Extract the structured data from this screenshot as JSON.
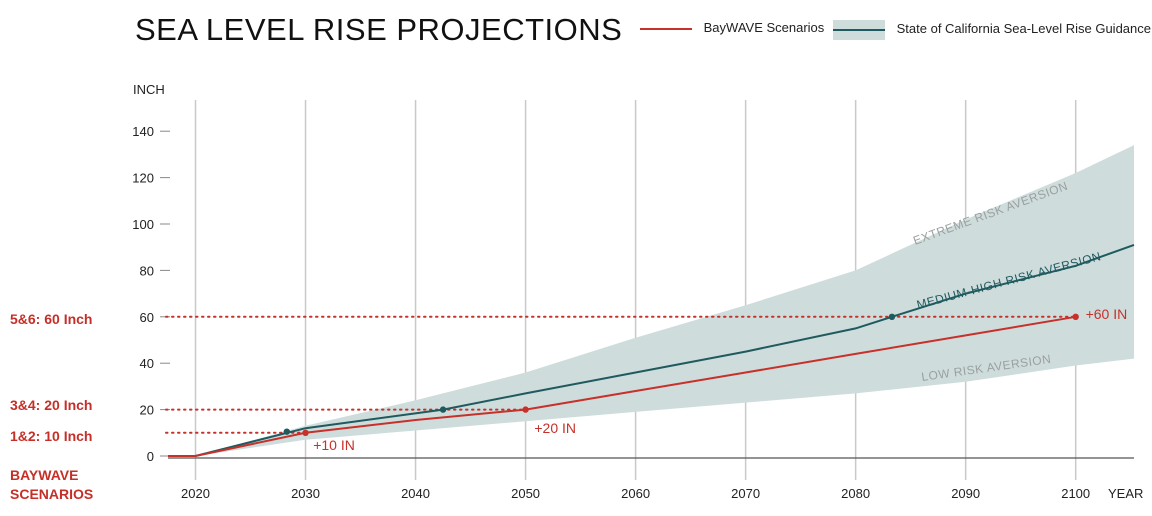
{
  "chart_data": {
    "type": "line",
    "title": "SEA LEVEL RISE PROJECTIONS",
    "ylabel": "INCH",
    "xlabel": "YEAR",
    "xlim": [
      2017.5,
      2105.3
    ],
    "ylim": [
      0,
      150
    ],
    "x_ticks": [
      2020,
      2030,
      2040,
      2050,
      2060,
      2070,
      2080,
      2090,
      2100
    ],
    "y_ticks": [
      0,
      20,
      40,
      60,
      80,
      100,
      120,
      140
    ],
    "legend": [
      {
        "name": "BayWAVE Scenarios",
        "color": "#c8302a"
      },
      {
        "name": "State of California Sea-Level Rise Guidance",
        "color": "#1f5a5f",
        "band_color": "#cfdcdc"
      }
    ],
    "band": {
      "name": "State of California Sea-Level Rise Guidance range",
      "x": [
        2017.5,
        2020,
        2030,
        2040,
        2050,
        2060,
        2070,
        2080,
        2090,
        2100,
        2105.3
      ],
      "upper": [
        0,
        0,
        13,
        24,
        36,
        51,
        65,
        80,
        102,
        122,
        134
      ],
      "lower": [
        0,
        0,
        7,
        11,
        15,
        19,
        23,
        27,
        32,
        39,
        42
      ]
    },
    "series": [
      {
        "name": "State of California Sea-Level Rise Guidance",
        "label": "MEDIUM-HIGH RISK AVERSION",
        "x": [
          2017.5,
          2020,
          2030,
          2042.5,
          2050,
          2060,
          2070,
          2080,
          2083.3,
          2090,
          2100,
          2105.3
        ],
        "values": [
          0,
          0,
          12,
          20,
          27,
          36,
          45,
          55,
          60,
          70,
          82,
          91
        ]
      },
      {
        "name": "BayWAVE Scenarios",
        "x": [
          2017.5,
          2020,
          2030,
          2040,
          2050,
          2060,
          2070,
          2080,
          2090,
          2100
        ],
        "values": [
          0,
          0,
          10,
          15.5,
          20,
          28,
          36,
          44,
          52,
          60
        ]
      }
    ],
    "markers": [
      {
        "series": "State of California Sea-Level Rise Guidance",
        "x": 2028.3,
        "y": 10.5
      },
      {
        "series": "State of California Sea-Level Rise Guidance",
        "x": 2042.5,
        "y": 20
      },
      {
        "series": "State of California Sea-Level Rise Guidance",
        "x": 2083.3,
        "y": 60
      },
      {
        "series": "BayWAVE Scenarios",
        "x": 2030,
        "y": 10
      },
      {
        "series": "BayWAVE Scenarios",
        "x": 2050,
        "y": 20
      },
      {
        "series": "BayWAVE Scenarios",
        "x": 2100,
        "y": 60
      }
    ],
    "reference_lines": [
      {
        "y": 10,
        "label": "1&2: 10 Inch",
        "x_end": 2030
      },
      {
        "y": 20,
        "label": "3&4: 20 Inch",
        "x_end": 2050
      },
      {
        "y": 60,
        "label": "5&6: 60 Inch",
        "x_end": 2100
      }
    ],
    "data_labels": [
      {
        "text": "+10 IN",
        "x": 2030.7,
        "y": 2.5
      },
      {
        "text": "+20 IN",
        "x": 2050.8,
        "y": 10
      },
      {
        "text": "+60 IN",
        "x": 2100.9,
        "y": 59
      }
    ],
    "annotations": [
      {
        "text": "EXTREME RISK AVERSION"
      },
      {
        "text": "MEDIUM-HIGH RISK AVERSION"
      },
      {
        "text": "LOW RISK AVERSION"
      }
    ],
    "left_group_label": [
      "BAYWAVE",
      "SCENARIOS"
    ]
  }
}
